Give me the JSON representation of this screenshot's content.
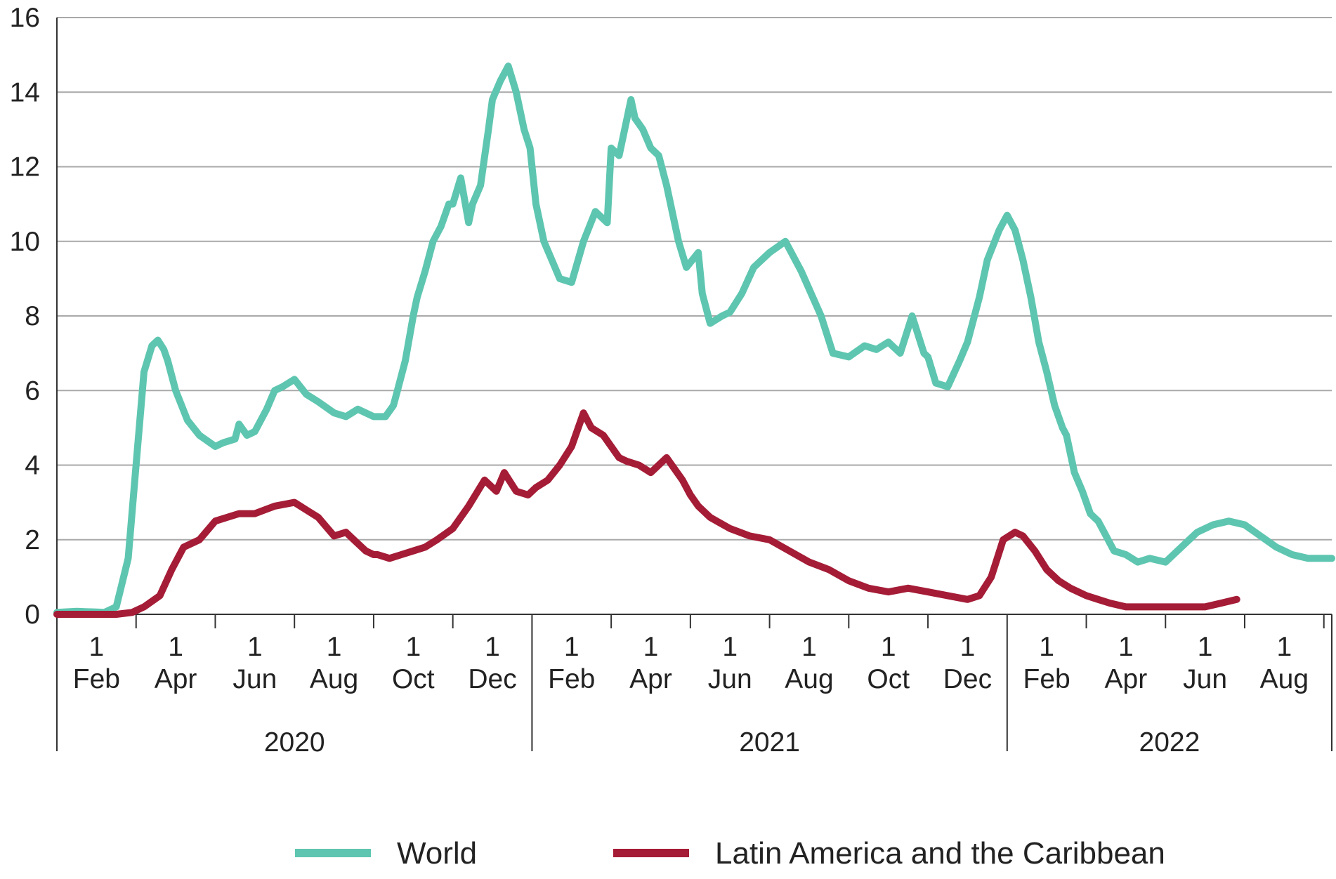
{
  "chart_data": {
    "type": "line",
    "title": "",
    "xlabel": "",
    "ylabel": "",
    "ylim": [
      0,
      16
    ],
    "y_ticks": [
      "0",
      "2",
      "4",
      "6",
      "8",
      "10",
      "12",
      "14",
      "16"
    ],
    "grid": true,
    "legend_position": "bottom",
    "x_range_months": [
      0,
      32.2
    ],
    "x_ticks": [
      {
        "day": "1",
        "month": "Feb"
      },
      {
        "day": "1",
        "month": "Apr"
      },
      {
        "day": "1",
        "month": "Jun"
      },
      {
        "day": "1",
        "month": "Aug"
      },
      {
        "day": "1",
        "month": "Oct"
      },
      {
        "day": "1",
        "month": "Dec"
      },
      {
        "day": "1",
        "month": "Feb"
      },
      {
        "day": "1",
        "month": "Apr"
      },
      {
        "day": "1",
        "month": "Jun"
      },
      {
        "day": "1",
        "month": "Aug"
      },
      {
        "day": "1",
        "month": "Oct"
      },
      {
        "day": "1",
        "month": "Dec"
      },
      {
        "day": "1",
        "month": "Feb"
      },
      {
        "day": "1",
        "month": "Apr"
      },
      {
        "day": "1",
        "month": "Jun"
      },
      {
        "day": "1",
        "month": "Aug"
      }
    ],
    "years": [
      {
        "label": "2020",
        "start": 0,
        "end": 12
      },
      {
        "label": "2021",
        "start": 12,
        "end": 24
      },
      {
        "label": "2022",
        "start": 24,
        "end": 32.2
      }
    ],
    "series": [
      {
        "name": "World",
        "color": "#5ec6b0",
        "x": [
          0,
          0.5,
          1,
          1.2,
          1.5,
          1.8,
          2.0,
          2.2,
          2.4,
          2.55,
          2.7,
          2.8,
          3.0,
          3.3,
          3.6,
          4.0,
          4.2,
          4.5,
          4.6,
          4.8,
          5.0,
          5.3,
          5.5,
          5.7,
          6.0,
          6.3,
          6.6,
          7.0,
          7.3,
          7.6,
          8.0,
          8.3,
          8.5,
          8.6,
          8.8,
          9.0,
          9.1,
          9.3,
          9.5,
          9.7,
          9.9,
          10.0,
          10.2,
          10.4,
          10.5,
          10.7,
          10.9,
          11.0,
          11.2,
          11.4,
          11.6,
          11.8,
          11.95,
          12.1,
          12.3,
          12.5,
          12.7,
          13.0,
          13.3,
          13.6,
          13.9,
          14.0,
          14.2,
          14.5,
          14.6,
          14.8,
          15.0,
          15.2,
          15.4,
          15.7,
          15.9,
          16.2,
          16.3,
          16.5,
          16.8,
          17.0,
          17.3,
          17.6,
          18.0,
          18.4,
          18.8,
          19.3,
          19.6,
          20.0,
          20.4,
          20.7,
          21.0,
          21.3,
          21.6,
          21.9,
          22.0,
          22.2,
          22.5,
          22.8,
          23.0,
          23.3,
          23.5,
          23.8,
          24.0,
          24.2,
          24.4,
          24.6,
          24.8,
          25.0,
          25.2,
          25.4,
          25.5,
          25.7,
          25.9,
          26.1,
          26.3,
          26.5,
          26.7,
          27.0,
          27.3,
          27.6,
          28.0,
          28.4,
          28.8,
          29.2,
          29.6,
          30.0,
          30.4,
          30.8,
          31.2,
          31.6,
          32.0,
          32.2
        ],
        "values": [
          0.05,
          0.08,
          0.06,
          0.05,
          0.2,
          1.5,
          4.0,
          6.5,
          7.2,
          7.35,
          7.1,
          6.8,
          6.0,
          5.2,
          4.8,
          4.5,
          4.6,
          4.7,
          5.1,
          4.8,
          4.9,
          5.5,
          6.0,
          6.1,
          6.3,
          5.9,
          5.7,
          5.4,
          5.3,
          5.5,
          5.3,
          5.3,
          5.6,
          6.0,
          6.8,
          8.0,
          8.5,
          9.2,
          10.0,
          10.4,
          11.0,
          11.0,
          11.7,
          10.5,
          11.0,
          11.5,
          13.0,
          13.8,
          14.3,
          14.7,
          14.0,
          13.0,
          12.5,
          11.0,
          10.0,
          9.5,
          9.0,
          8.9,
          10.0,
          10.8,
          10.5,
          12.5,
          12.3,
          13.8,
          13.3,
          13.0,
          12.5,
          12.3,
          11.5,
          10.0,
          9.3,
          9.7,
          8.6,
          7.8,
          8.0,
          8.1,
          8.6,
          9.3,
          9.7,
          10.0,
          9.2,
          8.0,
          7.0,
          6.9,
          7.2,
          7.1,
          7.3,
          7.0,
          8.0,
          7.0,
          6.9,
          6.2,
          6.1,
          6.8,
          7.3,
          8.5,
          9.5,
          10.3,
          10.7,
          10.3,
          9.5,
          8.5,
          7.3,
          6.5,
          5.6,
          5.0,
          4.8,
          3.8,
          3.3,
          2.7,
          2.5,
          2.1,
          1.7,
          1.6,
          1.4,
          1.5,
          1.4,
          1.8,
          2.2,
          2.4,
          2.5,
          2.4,
          2.1,
          1.8,
          1.6,
          1.5,
          1.5,
          1.5
        ]
      },
      {
        "name": "Latin America and the Caribbean",
        "color": "#a51c36",
        "x": [
          0,
          1,
          1.5,
          1.9,
          2.2,
          2.6,
          2.9,
          3.2,
          3.6,
          4.0,
          4.3,
          4.6,
          5.0,
          5.5,
          6.0,
          6.3,
          6.6,
          7.0,
          7.3,
          7.5,
          7.8,
          8.0,
          8.1,
          8.4,
          8.7,
          9.0,
          9.3,
          9.6,
          10.0,
          10.4,
          10.8,
          11.1,
          11.3,
          11.6,
          11.9,
          12.1,
          12.4,
          12.7,
          13.0,
          13.3,
          13.5,
          13.8,
          14.0,
          14.2,
          14.4,
          14.7,
          15.0,
          15.4,
          15.8,
          16.0,
          16.2,
          16.5,
          17.0,
          17.5,
          18.0,
          18.5,
          19.0,
          19.5,
          20.0,
          20.5,
          21.0,
          21.5,
          22.0,
          22.5,
          23.0,
          23.3,
          23.6,
          23.9,
          24.2,
          24.4,
          24.7,
          25.0,
          25.3,
          25.6,
          26.0,
          26.3,
          26.6,
          27.0,
          27.4,
          27.8,
          28.2,
          28.6,
          29.0,
          29.4,
          29.8
        ],
        "values": [
          0.0,
          0.0,
          0.0,
          0.05,
          0.2,
          0.5,
          1.2,
          1.8,
          2.0,
          2.5,
          2.6,
          2.7,
          2.7,
          2.9,
          3.0,
          2.8,
          2.6,
          2.1,
          2.2,
          2.0,
          1.7,
          1.6,
          1.6,
          1.5,
          1.6,
          1.7,
          1.8,
          2.0,
          2.3,
          2.9,
          3.6,
          3.3,
          3.8,
          3.3,
          3.2,
          3.4,
          3.6,
          4.0,
          4.5,
          5.4,
          5.0,
          4.8,
          4.5,
          4.2,
          4.1,
          4.0,
          3.8,
          4.2,
          3.6,
          3.2,
          2.9,
          2.6,
          2.3,
          2.1,
          2.0,
          1.7,
          1.4,
          1.2,
          0.9,
          0.7,
          0.6,
          0.7,
          0.6,
          0.5,
          0.4,
          0.5,
          1.0,
          2.0,
          2.2,
          2.1,
          1.7,
          1.2,
          0.9,
          0.7,
          0.5,
          0.4,
          0.3,
          0.2,
          0.2,
          0.2,
          0.2,
          0.2,
          0.2,
          0.3,
          0.4
        ]
      }
    ]
  }
}
